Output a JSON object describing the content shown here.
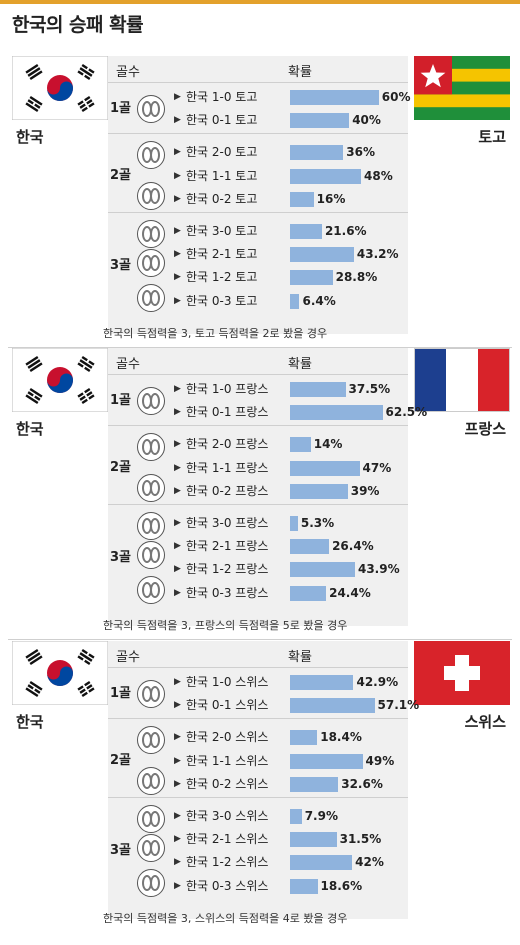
{
  "title": "한국의 승패 확률",
  "columns": {
    "goals": "골수",
    "probability": "확률"
  },
  "home_team": "한국",
  "matches": [
    {
      "opponent": "토고",
      "flag": "togo-flag",
      "footnote": "한국의 득점력을 3, 토고 득점력을 2로 봤을 경우",
      "groups": [
        {
          "label": "1골",
          "rows": [
            {
              "label": "한국 1-0 토고",
              "value": 60,
              "display": "60%"
            },
            {
              "label": "한국 0-1 토고",
              "value": 40,
              "display": "40%"
            }
          ]
        },
        {
          "label": "2골",
          "rows": [
            {
              "label": "한국 2-0 토고",
              "value": 36,
              "display": "36%"
            },
            {
              "label": "한국 1-1 토고",
              "value": 48,
              "display": "48%"
            },
            {
              "label": "한국 0-2 토고",
              "value": 16,
              "display": "16%"
            }
          ]
        },
        {
          "label": "3골",
          "rows": [
            {
              "label": "한국 3-0 토고",
              "value": 21.6,
              "display": "21.6%"
            },
            {
              "label": "한국 2-1 토고",
              "value": 43.2,
              "display": "43.2%"
            },
            {
              "label": "한국 1-2 토고",
              "value": 28.8,
              "display": "28.8%"
            },
            {
              "label": "한국 0-3 토고",
              "value": 6.4,
              "display": "6.4%"
            }
          ]
        }
      ]
    },
    {
      "opponent": "프랑스",
      "flag": "france-flag",
      "footnote": "한국의 득점력을 3, 프랑스의 득점력을 5로 봤을 경우",
      "groups": [
        {
          "label": "1골",
          "rows": [
            {
              "label": "한국 1-0 프랑스",
              "value": 37.5,
              "display": "37.5%"
            },
            {
              "label": "한국 0-1 프랑스",
              "value": 62.5,
              "display": "62.5%"
            }
          ]
        },
        {
          "label": "2골",
          "rows": [
            {
              "label": "한국 2-0 프랑스",
              "value": 14,
              "display": "14%"
            },
            {
              "label": "한국 1-1 프랑스",
              "value": 47,
              "display": "47%"
            },
            {
              "label": "한국 0-2 프랑스",
              "value": 39,
              "display": "39%"
            }
          ]
        },
        {
          "label": "3골",
          "rows": [
            {
              "label": "한국 3-0 프랑스",
              "value": 5.3,
              "display": "5.3%"
            },
            {
              "label": "한국 2-1 프랑스",
              "value": 26.4,
              "display": "26.4%"
            },
            {
              "label": "한국 1-2 프랑스",
              "value": 43.9,
              "display": "43.9%"
            },
            {
              "label": "한국 0-3 프랑스",
              "value": 24.4,
              "display": "24.4%"
            }
          ]
        }
      ]
    },
    {
      "opponent": "스위스",
      "flag": "switzerland-flag",
      "footnote": "한국의 득점력을 3, 스위스의 득점력을 4로 봤을 경우",
      "groups": [
        {
          "label": "1골",
          "rows": [
            {
              "label": "한국 1-0 스위스",
              "value": 42.9,
              "display": "42.9%"
            },
            {
              "label": "한국 0-1 스위스",
              "value": 57.1,
              "display": "57.1%"
            }
          ]
        },
        {
          "label": "2골",
          "rows": [
            {
              "label": "한국 2-0 스위스",
              "value": 18.4,
              "display": "18.4%"
            },
            {
              "label": "한국 1-1 스위스",
              "value": 49,
              "display": "49%"
            },
            {
              "label": "한국 0-2 스위스",
              "value": 32.6,
              "display": "32.6%"
            }
          ]
        },
        {
          "label": "3골",
          "rows": [
            {
              "label": "한국 3-0 스위스",
              "value": 7.9,
              "display": "7.9%"
            },
            {
              "label": "한국 2-1 스위스",
              "value": 31.5,
              "display": "31.5%"
            },
            {
              "label": "한국 1-2 스위스",
              "value": 42,
              "display": "42%"
            },
            {
              "label": "한국 0-3 스위스",
              "value": 18.6,
              "display": "18.6%"
            }
          ]
        }
      ]
    }
  ],
  "chart_data": {
    "type": "bar",
    "orientation": "horizontal",
    "title": "한국의 승패 확률",
    "xlim": [
      0,
      100
    ],
    "grid": false,
    "legend": "none",
    "colors": {
      "bar": "#8fb3dd",
      "accent": "#e3a12b"
    }
  }
}
